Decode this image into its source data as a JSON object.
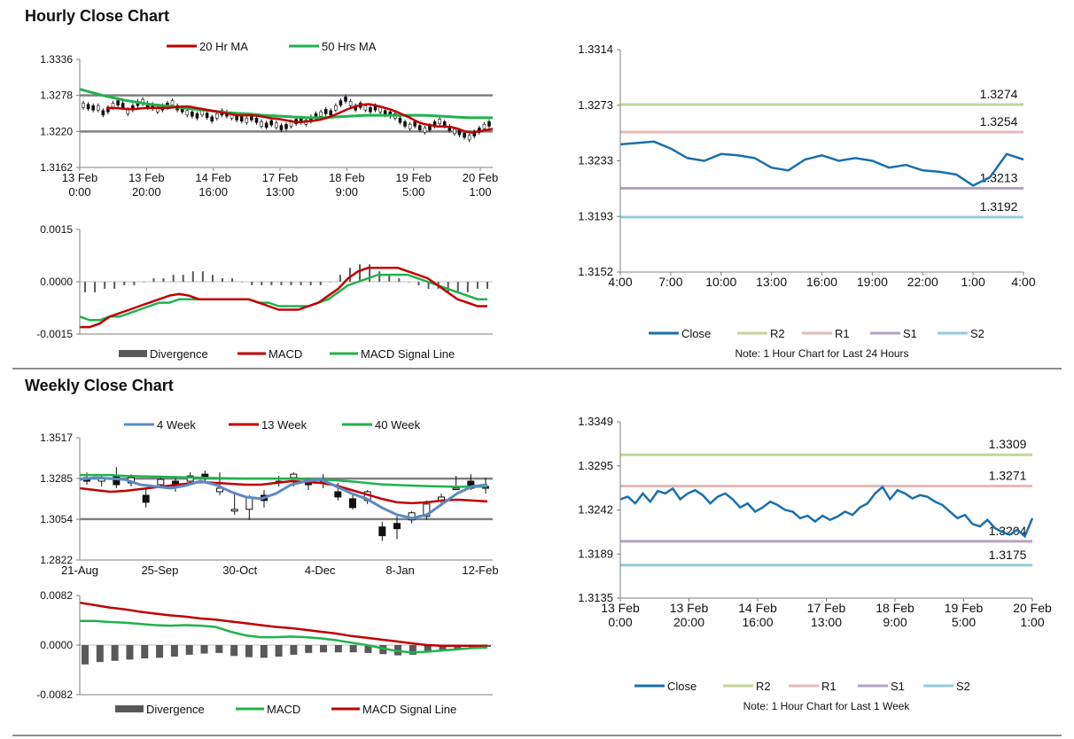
{
  "colors": {
    "ma20": "#c00000",
    "ma50": "#1fb34c",
    "w4": "#5b8ac4",
    "w13": "#c00000",
    "w40": "#1fb34c",
    "close": "#1a6fad",
    "r2": "#c3d69b",
    "r1": "#e6b9b8",
    "s1": "#b3a2c7",
    "s2": "#93cddd",
    "divergence": "#595959",
    "candleUp": "#ffffff",
    "candleDown": "#111111"
  },
  "sections": {
    "hourly_title": "Hourly Close Chart",
    "weekly_title": "Weekly Close Chart"
  },
  "chart_data": [
    {
      "id": "hourly_price",
      "type": "candlestick-with-ma",
      "legend": [
        "20 Hr MA",
        "50 Hrs MA"
      ],
      "y_ticks": [
        "1.3336",
        "1.3278",
        "1.3220",
        "1.3162"
      ],
      "ylim": [
        1.3162,
        1.3336
      ],
      "x_labels": [
        [
          "13 Feb",
          "0:00"
        ],
        [
          "13 Feb",
          "20:00"
        ],
        [
          "14 Feb",
          "16:00"
        ],
        [
          "17 Feb",
          "13:00"
        ],
        [
          "18 Feb",
          "9:00"
        ],
        [
          "19 Feb",
          "5:00"
        ],
        [
          "20 Feb",
          "1:00"
        ]
      ],
      "hlines": [
        1.3278,
        1.322
      ],
      "closes": [
        1.3262,
        1.326,
        1.3258,
        1.3258,
        1.325,
        1.3255,
        1.3262,
        1.3266,
        1.3262,
        1.3252,
        1.3258,
        1.3265,
        1.3268,
        1.3262,
        1.326,
        1.3255,
        1.3258,
        1.3262,
        1.3266,
        1.3258,
        1.3255,
        1.325,
        1.3248,
        1.3245,
        1.325,
        1.3246,
        1.324,
        1.3245,
        1.325,
        1.3248,
        1.3245,
        1.3242,
        1.324,
        1.3238,
        1.3242,
        1.3238,
        1.3232,
        1.323,
        1.3234,
        1.323,
        1.3226,
        1.3228,
        1.3232,
        1.3236,
        1.3238,
        1.3235,
        1.324,
        1.3245,
        1.3248,
        1.3252,
        1.325,
        1.3258,
        1.3266,
        1.3272,
        1.3265,
        1.3258,
        1.3262,
        1.3258,
        1.3255,
        1.3258,
        1.3255,
        1.325,
        1.3248,
        1.3245,
        1.3238,
        1.3232,
        1.3228,
        1.3232,
        1.3226,
        1.3222,
        1.3226,
        1.3232,
        1.3236,
        1.3232,
        1.3225,
        1.322,
        1.3218,
        1.3214,
        1.321,
        1.3216,
        1.3222,
        1.3228,
        1.3232
      ],
      "ma20": [
        1.3258,
        1.3258,
        1.3257,
        1.3256,
        1.3256,
        1.3257,
        1.3258,
        1.3258,
        1.3258,
        1.3258,
        1.3259,
        1.326,
        1.326,
        1.3258,
        1.3256,
        1.3254,
        1.3252,
        1.325,
        1.3248,
        1.3246,
        1.3246,
        1.3246,
        1.3245,
        1.3243,
        1.3241,
        1.324,
        1.3238,
        1.3236,
        1.3235,
        1.3236,
        1.3237,
        1.3239,
        1.3242,
        1.3246,
        1.3251,
        1.3256,
        1.326,
        1.3263,
        1.3264,
        1.3262,
        1.3259,
        1.3256,
        1.3252,
        1.3247,
        1.3242,
        1.3236,
        1.3232,
        1.323,
        1.3228,
        1.3228,
        1.3227,
        1.3224,
        1.322,
        1.3218,
        1.322,
        1.3222,
        1.3224
      ],
      "ma50": [
        1.3288,
        1.3283,
        1.3278,
        1.3274,
        1.327,
        1.3267,
        1.3264,
        1.3262,
        1.326,
        1.3258,
        1.3256,
        1.3254,
        1.3252,
        1.325,
        1.3249,
        1.3248,
        1.3246,
        1.3245,
        1.3244,
        1.3243,
        1.3242,
        1.3242,
        1.3243,
        1.3244,
        1.3245,
        1.3246,
        1.3246,
        1.3246,
        1.3246,
        1.3246,
        1.3246,
        1.3245,
        1.3244,
        1.3243,
        1.3242,
        1.3242,
        1.3242
      ]
    },
    {
      "id": "hourly_macd",
      "type": "macd",
      "y_ticks": [
        "0.0015",
        "0.0000",
        "-0.0015"
      ],
      "ylim": [
        -0.0015,
        0.0015
      ],
      "legend": [
        "Divergence",
        "MACD",
        "MACD Signal Line"
      ],
      "macd": [
        -0.0013,
        -0.0013,
        -0.0012,
        -0.001,
        -0.0009,
        -0.0008,
        -0.0007,
        -0.0006,
        -0.0005,
        -0.0004,
        -0.00035,
        -0.0004,
        -0.0005,
        -0.0005,
        -0.0005,
        -0.0005,
        -0.0005,
        -0.0005,
        -0.0006,
        -0.0007,
        -0.0008,
        -0.0008,
        -0.0008,
        -0.0007,
        -0.0006,
        -0.0004,
        -0.0002,
        0.0001,
        0.0003,
        0.0004,
        0.0004,
        0.0004,
        0.0004,
        0.0003,
        0.0002,
        0.0001,
        -0.0001,
        -0.0003,
        -0.0005,
        -0.0006,
        -0.0007,
        -0.0007
      ],
      "signal": [
        -0.001,
        -0.0011,
        -0.0011,
        -0.001,
        -0.001,
        -0.0009,
        -0.0008,
        -0.0007,
        -0.0006,
        -0.0006,
        -0.0005,
        -0.0005,
        -0.0005,
        -0.0005,
        -0.0005,
        -0.0005,
        -0.0005,
        -0.0005,
        -0.0006,
        -0.0006,
        -0.0007,
        -0.0007,
        -0.0007,
        -0.0007,
        -0.0006,
        -0.0005,
        -0.0003,
        -0.0001,
        0.0,
        0.0001,
        0.0002,
        0.0002,
        0.0002,
        0.0002,
        0.0001,
        0.0,
        -0.0001,
        -0.0002,
        -0.0003,
        -0.0004,
        -0.0005,
        -0.0005
      ],
      "divergence": [
        -0.0003,
        -0.0003,
        -0.0002,
        -0.0002,
        -0.0001,
        -0.0001,
        0.0,
        0.0001,
        0.0001,
        0.0002,
        0.0002,
        0.0003,
        0.0003,
        0.0002,
        0.0001,
        0.0001,
        0.0,
        -0.0001,
        -0.0001,
        -0.0001,
        -0.0001,
        -0.0001,
        -0.0001,
        -0.0001,
        -0.0001,
        0.0,
        0.0002,
        0.0004,
        0.0005,
        0.0005,
        0.0003,
        0.0002,
        0.0001,
        0.0,
        -0.0001,
        -0.0002,
        -0.0002,
        -0.0003,
        -0.0003,
        -0.0003,
        -0.0002,
        -0.0002
      ]
    },
    {
      "id": "hourly_24h",
      "type": "line",
      "y_ticks": [
        "1.3314",
        "1.3273",
        "1.3233",
        "1.3193",
        "1.3152"
      ],
      "ylim": [
        1.3152,
        1.3314
      ],
      "x_labels": [
        "4:00",
        "7:00",
        "10:00",
        "13:00",
        "16:00",
        "19:00",
        "22:00",
        "1:00",
        "4:00"
      ],
      "close": [
        1.3245,
        1.3246,
        1.3247,
        1.3242,
        1.3235,
        1.3233,
        1.3238,
        1.3237,
        1.3235,
        1.3228,
        1.3226,
        1.3234,
        1.3237,
        1.3233,
        1.3235,
        1.3233,
        1.3228,
        1.323,
        1.3226,
        1.3225,
        1.3223,
        1.3215,
        1.3221,
        1.3238,
        1.3234
      ],
      "levels": {
        "R2": 1.3274,
        "R1": 1.3254,
        "S1": 1.3213,
        "S2": 1.3192
      },
      "level_labels": [
        "1.3274",
        "1.3254",
        "1.3213",
        "1.3192"
      ],
      "legend": [
        "Close",
        "R2",
        "R1",
        "S1",
        "S2"
      ],
      "note": "Note: 1 Hour Chart for Last 24 Hours"
    },
    {
      "id": "weekly_price",
      "type": "candlestick-with-ma",
      "legend": [
        "4 Week",
        "13 Week",
        "40 Week"
      ],
      "y_ticks": [
        "1.3517",
        "1.3285",
        "1.3054",
        "1.2822"
      ],
      "ylim": [
        1.2822,
        1.3517
      ],
      "x_labels": [
        "21-Aug",
        "25-Sep",
        "30-Oct",
        "4-Dec",
        "8-Jan",
        "12-Feb"
      ],
      "hlines": [
        1.3285,
        1.3054
      ],
      "candles": [
        [
          1.329,
          1.327,
          1.332,
          1.325
        ],
        [
          1.327,
          1.329,
          1.331,
          1.324
        ],
        [
          1.33,
          1.325,
          1.335,
          1.323
        ],
        [
          1.326,
          1.329,
          1.331,
          1.324
        ],
        [
          1.319,
          1.315,
          1.323,
          1.312
        ],
        [
          1.325,
          1.328,
          1.33,
          1.323
        ],
        [
          1.327,
          1.324,
          1.33,
          1.321
        ],
        [
          1.327,
          1.33,
          1.332,
          1.325
        ],
        [
          1.331,
          1.329,
          1.333,
          1.326
        ],
        [
          1.321,
          1.323,
          1.332,
          1.319
        ],
        [
          1.31,
          1.311,
          1.32,
          1.308
        ],
        [
          1.311,
          1.318,
          1.319,
          1.305
        ],
        [
          1.319,
          1.316,
          1.322,
          1.312
        ],
        [
          1.327,
          1.327,
          1.33,
          1.324
        ],
        [
          1.329,
          1.331,
          1.332,
          1.324
        ],
        [
          1.327,
          1.325,
          1.329,
          1.322
        ],
        [
          1.328,
          1.327,
          1.331,
          1.323
        ],
        [
          1.321,
          1.318,
          1.326,
          1.316
        ],
        [
          1.317,
          1.312,
          1.32,
          1.311
        ],
        [
          1.316,
          1.321,
          1.322,
          1.314
        ],
        [
          1.301,
          1.296,
          1.304,
          1.293
        ],
        [
          1.303,
          1.3,
          1.307,
          1.294
        ],
        [
          1.305,
          1.309,
          1.31,
          1.303
        ],
        [
          1.307,
          1.314,
          1.316,
          1.305
        ],
        [
          1.316,
          1.318,
          1.32,
          1.314
        ],
        [
          1.323,
          1.323,
          1.33,
          1.322
        ],
        [
          1.327,
          1.323,
          1.331,
          1.322
        ],
        [
          1.324,
          1.323,
          1.329,
          1.32
        ]
      ],
      "w4": [
        1.328,
        1.329,
        1.3285,
        1.328,
        1.325,
        1.324,
        1.323,
        1.3245,
        1.327,
        1.325,
        1.321,
        1.318,
        1.317,
        1.32,
        1.325,
        1.327,
        1.328,
        1.324,
        1.32,
        1.317,
        1.312,
        1.308,
        1.306,
        1.308,
        1.314,
        1.32,
        1.324,
        1.325
      ],
      "w13": [
        1.323,
        1.322,
        1.321,
        1.3215,
        1.3225,
        1.3235,
        1.3245,
        1.3255,
        1.3265,
        1.326,
        1.3255,
        1.325,
        1.325,
        1.326,
        1.327,
        1.3265,
        1.326,
        1.3245,
        1.322,
        1.3195,
        1.317,
        1.315,
        1.3145,
        1.315,
        1.316,
        1.3165,
        1.316,
        1.3155
      ],
      "w40": [
        1.3305,
        1.3305,
        1.3305,
        1.33,
        1.3298,
        1.3296,
        1.3294,
        1.3292,
        1.329,
        1.3288,
        1.3286,
        1.3285,
        1.3285,
        1.3285,
        1.3284,
        1.3282,
        1.328,
        1.3275,
        1.3268,
        1.326,
        1.3252,
        1.3248,
        1.3245,
        1.3242,
        1.324,
        1.3238,
        1.3238,
        1.324
      ]
    },
    {
      "id": "weekly_macd",
      "type": "macd",
      "y_ticks": [
        "0.0082",
        "0.0000",
        "-0.0082"
      ],
      "ylim": [
        -0.0082,
        0.0082
      ],
      "legend": [
        "Divergence",
        "MACD",
        "MACD Signal Line"
      ],
      "macd": [
        0.004,
        0.004,
        0.0038,
        0.0037,
        0.0035,
        0.0033,
        0.0032,
        0.0033,
        0.0032,
        0.003,
        0.0022,
        0.0016,
        0.0013,
        0.0013,
        0.0014,
        0.0013,
        0.0011,
        0.0008,
        0.0004,
        0.0,
        -0.0005,
        -0.001,
        -0.0012,
        -0.0011,
        -0.0009,
        -0.0007,
        -0.0005,
        -0.0004
      ],
      "signal": [
        0.007,
        0.0066,
        0.0062,
        0.0059,
        0.0055,
        0.0052,
        0.0049,
        0.0047,
        0.0044,
        0.0042,
        0.0039,
        0.0036,
        0.0033,
        0.003,
        0.0028,
        0.0025,
        0.0022,
        0.0019,
        0.0015,
        0.0012,
        0.0009,
        0.0006,
        0.0003,
        0.0,
        -0.0001,
        -0.0001,
        -0.0001,
        -0.0001
      ],
      "divergence": [
        -0.0032,
        -0.0028,
        -0.0026,
        -0.0024,
        -0.0022,
        -0.0021,
        -0.0019,
        -0.0016,
        -0.0014,
        -0.0013,
        -0.0018,
        -0.002,
        -0.0021,
        -0.0019,
        -0.0016,
        -0.0013,
        -0.0012,
        -0.0012,
        -0.0012,
        -0.0013,
        -0.0015,
        -0.0017,
        -0.0016,
        -0.0012,
        -0.0009,
        -0.0006,
        -0.0004,
        -0.0003
      ]
    },
    {
      "id": "weekly_1w",
      "type": "line",
      "y_ticks": [
        "1.3349",
        "1.3295",
        "1.3242",
        "1.3189",
        "1.3135"
      ],
      "ylim": [
        1.3135,
        1.3349
      ],
      "x_labels": [
        [
          "13 Feb",
          "0:00"
        ],
        [
          "13 Feb",
          "20:00"
        ],
        [
          "14 Feb",
          "16:00"
        ],
        [
          "17 Feb",
          "13:00"
        ],
        [
          "18 Feb",
          "9:00"
        ],
        [
          "19 Feb",
          "5:00"
        ],
        [
          "20 Feb",
          "1:00"
        ]
      ],
      "close": [
        1.3255,
        1.3258,
        1.325,
        1.3262,
        1.3252,
        1.3265,
        1.3262,
        1.3268,
        1.3255,
        1.3262,
        1.3266,
        1.326,
        1.325,
        1.3258,
        1.3262,
        1.3255,
        1.3245,
        1.325,
        1.324,
        1.3245,
        1.3252,
        1.3248,
        1.3242,
        1.324,
        1.3232,
        1.3235,
        1.3228,
        1.3235,
        1.323,
        1.3234,
        1.324,
        1.3236,
        1.3245,
        1.325,
        1.3262,
        1.327,
        1.3255,
        1.3266,
        1.3262,
        1.3256,
        1.326,
        1.3258,
        1.3252,
        1.3248,
        1.324,
        1.3232,
        1.3236,
        1.3225,
        1.3222,
        1.323,
        1.322,
        1.3215,
        1.3212,
        1.3218,
        1.321,
        1.3232
      ],
      "levels": {
        "R2": 1.3309,
        "R1": 1.3271,
        "S1": 1.3204,
        "S2": 1.3175
      },
      "level_labels": [
        "1.3309",
        "1.3271",
        "1.3204",
        "1.3175"
      ],
      "legend": [
        "Close",
        "R2",
        "R1",
        "S1",
        "S2"
      ],
      "note": "Note: 1 Hour Chart for  Last 1 Week"
    }
  ]
}
